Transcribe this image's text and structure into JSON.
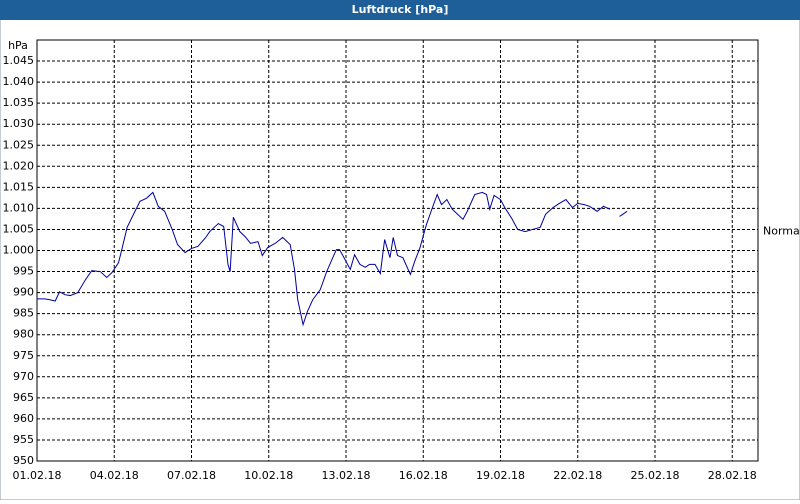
{
  "chart_data": {
    "type": "line",
    "title": "Luftdruck [hPa]",
    "y_label": "hPa",
    "x": [
      "2018-02-01T00:00",
      "2018-02-01T07:00",
      "2018-02-01T12:00",
      "2018-02-01T17:00",
      "2018-02-01T21:00",
      "2018-02-02T02:00",
      "2018-02-02T07:00",
      "2018-02-02T14:00",
      "2018-02-02T21:00",
      "2018-02-03T03:00",
      "2018-02-03T11:00",
      "2018-02-03T17:00",
      "2018-02-03T22:00",
      "2018-02-04T04:00",
      "2018-02-04T07:00",
      "2018-02-04T12:00",
      "2018-02-04T17:00",
      "2018-02-05T00:00",
      "2018-02-05T06:00",
      "2018-02-05T12:00",
      "2018-02-05T17:00",
      "2018-02-05T23:00",
      "2018-02-06T06:00",
      "2018-02-06T11:00",
      "2018-02-06T18:00",
      "2018-02-07T00:00",
      "2018-02-07T06:00",
      "2018-02-07T13:00",
      "2018-02-07T17:00",
      "2018-02-08T01:00",
      "2018-02-08T06:00",
      "2018-02-08T10:00",
      "2018-02-08T12:00",
      "2018-02-08T15:00",
      "2018-02-08T21:00",
      "2018-02-09T02:00",
      "2018-02-09T07:00",
      "2018-02-09T14:00",
      "2018-02-09T18:00",
      "2018-02-09T23:00",
      "2018-02-10T06:00",
      "2018-02-10T13:00",
      "2018-02-10T20:00",
      "2018-02-11T00:00",
      "2018-02-11T03:00",
      "2018-02-11T08:00",
      "2018-02-11T12:00",
      "2018-02-11T17:00",
      "2018-02-12T00:00",
      "2018-02-12T06:00",
      "2018-02-12T11:00",
      "2018-02-12T15:00",
      "2018-02-12T18:00",
      "2018-02-12T23:00",
      "2018-02-13T04:00",
      "2018-02-13T08:00",
      "2018-02-13T13:00",
      "2018-02-13T18:00",
      "2018-02-13T22:00",
      "2018-02-14T03:00",
      "2018-02-14T08:00",
      "2018-02-14T12:00",
      "2018-02-14T17:00",
      "2018-02-14T20:00",
      "2018-02-15T00:00",
      "2018-02-15T05:00",
      "2018-02-15T12:00",
      "2018-02-15T16:00",
      "2018-02-15T21:00",
      "2018-02-16T03:00",
      "2018-02-16T08:00",
      "2018-02-16T13:00",
      "2018-02-16T17:00",
      "2018-02-16T22:00",
      "2018-02-17T03:00",
      "2018-02-17T08:00",
      "2018-02-17T13:00",
      "2018-02-17T17:00",
      "2018-02-18T00:00",
      "2018-02-18T07:00",
      "2018-02-18T11:00",
      "2018-02-18T14:00",
      "2018-02-18T18:00",
      "2018-02-19T00:00",
      "2018-02-19T04:00",
      "2018-02-19T11:00",
      "2018-02-19T16:00",
      "2018-02-19T23:00",
      "2018-02-20T06:00",
      "2018-02-20T13:00",
      "2018-02-20T18:00",
      "2018-02-21T01:00",
      "2018-02-21T07:00",
      "2018-02-21T13:00",
      "2018-02-21T19:00",
      "2018-02-22T00:00",
      "2018-02-22T06:00",
      "2018-02-22T11:00",
      "2018-02-22T18:00",
      "2018-02-23T00:00",
      "2018-02-23T06:00",
      "2018-02-23T12:00",
      "2018-02-23T15:00",
      "2018-02-23T22:00"
    ],
    "series": [
      {
        "name": "Luftdruck",
        "color": "#0000a0",
        "values": [
          988.5,
          988.5,
          988.3,
          988,
          990.2,
          989.5,
          989.3,
          990,
          993,
          995.2,
          995,
          993.6,
          994.8,
          997.1,
          1000.2,
          1005.5,
          1008.1,
          1011.7,
          1012.4,
          1013.8,
          1010.5,
          1009.3,
          1005,
          1001.4,
          999.5,
          1000.5,
          1001,
          1003,
          1004.5,
          1006.4,
          1005.7,
          996.7,
          995,
          1007.9,
          1004.5,
          1003.3,
          1001.7,
          1002.1,
          998.8,
          1000.7,
          1001.7,
          1003.1,
          1001.4,
          995.5,
          988.3,
          982.4,
          985.5,
          988.3,
          990.7,
          995,
          997.9,
          1000.2,
          1000.2,
          997.9,
          995.5,
          999,
          996.7,
          996,
          996.7,
          996.7,
          994.5,
          1002.6,
          998.3,
          1003.1,
          998.8,
          998.3,
          994.3,
          997.4,
          1000.7,
          1006.2,
          1009.8,
          1013.3,
          1010.9,
          1012.1,
          1009.8,
          1008.6,
          1007.4,
          1009.3,
          1013.3,
          1013.8,
          1013.3,
          1009.8,
          1013.1,
          1012.1,
          1010.2,
          1007.4,
          1005,
          1004.5,
          1005,
          1005.5,
          1008.6,
          1010.2,
          1011.2,
          1012.1,
          1010.2,
          1011.2,
          1010.9,
          1010.5,
          1009.3,
          1010.5,
          1009.8,
          null,
          1008.1,
          1009.3
        ]
      }
    ],
    "xlim": [
      "2018-02-01T00:00",
      "2018-03-01T00:00"
    ],
    "xticks": [
      {
        "value": "2018-02-01T00:00",
        "label": "01.02.18"
      },
      {
        "value": "2018-02-04T00:00",
        "label": "04.02.18"
      },
      {
        "value": "2018-02-07T00:00",
        "label": "07.02.18"
      },
      {
        "value": "2018-02-10T00:00",
        "label": "10.02.18"
      },
      {
        "value": "2018-02-13T00:00",
        "label": "13.02.18"
      },
      {
        "value": "2018-02-16T00:00",
        "label": "16.02.18"
      },
      {
        "value": "2018-02-19T00:00",
        "label": "19.02.18"
      },
      {
        "value": "2018-02-22T00:00",
        "label": "22.02.18"
      },
      {
        "value": "2018-02-25T00:00",
        "label": "25.02.18"
      },
      {
        "value": "2018-02-28T00:00",
        "label": "28.02.18"
      }
    ],
    "ylim": [
      950,
      1050
    ],
    "yticks": [
      950,
      955,
      960,
      965,
      970,
      975,
      980,
      985,
      990,
      995,
      {
        "value": 1000,
        "label": "1.000"
      },
      {
        "value": 1005,
        "label": "1.005"
      },
      {
        "value": 1010,
        "label": "1.010"
      },
      {
        "value": 1015,
        "label": "1.015"
      },
      {
        "value": 1020,
        "label": "1.020"
      },
      {
        "value": 1025,
        "label": "1.025"
      },
      {
        "value": 1030,
        "label": "1.030"
      },
      {
        "value": 1035,
        "label": "1.035"
      },
      {
        "value": 1040,
        "label": "1.040"
      },
      {
        "value": 1045,
        "label": "1.045"
      }
    ],
    "grid": true,
    "annotations": [
      {
        "text": "Normal",
        "y": 1004.5
      }
    ]
  }
}
